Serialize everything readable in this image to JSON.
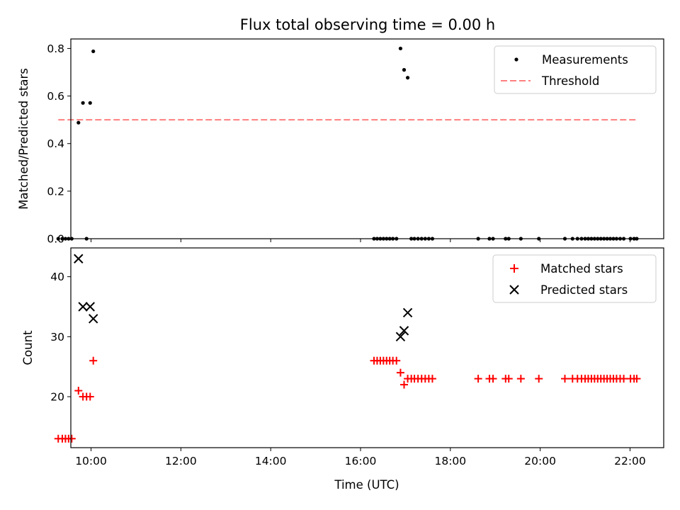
{
  "chart_data": [
    {
      "type": "scatter",
      "title": "Flux total observing time = 0.00 h",
      "xlabel": "",
      "ylabel": "Matched/Predicted stars",
      "xlim": [
        9.55,
        22.75
      ],
      "ylim": [
        0.0,
        0.84
      ],
      "yticks": [
        0.0,
        0.2,
        0.4,
        0.6,
        0.8
      ],
      "ytick_labels": [
        "0.0",
        "0.2",
        "0.4",
        "0.6",
        "0.8"
      ],
      "xticks": [
        10,
        12,
        14,
        16,
        18,
        20,
        22
      ],
      "legend_position": "top-right",
      "series": [
        {
          "name": "Measurements",
          "marker": "dot",
          "color": "#000000",
          "x": [
            9.27,
            9.36,
            9.43,
            9.5,
            9.57,
            9.72,
            9.82,
            9.9,
            9.98,
            10.05,
            16.3,
            16.37,
            16.44,
            16.51,
            16.58,
            16.65,
            16.72,
            16.8,
            16.89,
            16.97,
            17.05,
            17.13,
            17.2,
            17.28,
            17.36,
            17.44,
            17.52,
            17.6,
            18.62,
            18.87,
            18.95,
            19.23,
            19.3,
            19.57,
            19.97,
            20.55,
            20.72,
            20.83,
            20.92,
            21.0,
            21.07,
            21.14,
            21.21,
            21.28,
            21.35,
            21.42,
            21.49,
            21.56,
            21.63,
            21.7,
            21.78,
            21.86,
            22.01,
            22.09,
            22.15
          ],
          "y": [
            0.0,
            0.0,
            0.0,
            0.0,
            0.0,
            0.488,
            0.571,
            0.0,
            0.571,
            0.788,
            0.0,
            0.0,
            0.0,
            0.0,
            0.0,
            0.0,
            0.0,
            0.0,
            0.8,
            0.71,
            0.677,
            0.0,
            0.0,
            0.0,
            0.0,
            0.0,
            0.0,
            0.0,
            0.0,
            0.0,
            0.0,
            0.0,
            0.0,
            0.0,
            0.0,
            0.0,
            0.0,
            0.0,
            0.0,
            0.0,
            0.0,
            0.0,
            0.0,
            0.0,
            0.0,
            0.0,
            0.0,
            0.0,
            0.0,
            0.0,
            0.0,
            0.0,
            0.0,
            0.0,
            0.0
          ]
        },
        {
          "name": "Threshold",
          "marker": "dashed-line",
          "color": "#ff7f7f",
          "x": [
            9.27,
            22.15
          ],
          "y": [
            0.5,
            0.5
          ]
        }
      ]
    },
    {
      "type": "scatter",
      "title": "",
      "xlabel": "Time (UTC)",
      "ylabel": "Count",
      "xlim": [
        9.55,
        22.75
      ],
      "ylim": [
        11.5,
        44.8
      ],
      "yticks": [
        20,
        30,
        40
      ],
      "ytick_labels": [
        "20",
        "30",
        "40"
      ],
      "xticks": [
        10,
        12,
        14,
        16,
        18,
        20,
        22
      ],
      "xtick_labels": [
        "10:00",
        "12:00",
        "14:00",
        "16:00",
        "18:00",
        "20:00",
        "22:00"
      ],
      "legend_position": "top-right",
      "series": [
        {
          "name": "Matched stars",
          "marker": "plus",
          "color": "#ff0000",
          "x": [
            9.27,
            9.36,
            9.43,
            9.5,
            9.57,
            9.72,
            9.82,
            9.9,
            9.98,
            10.05,
            16.3,
            16.37,
            16.44,
            16.51,
            16.58,
            16.65,
            16.72,
            16.8,
            16.89,
            16.97,
            17.05,
            17.13,
            17.2,
            17.28,
            17.36,
            17.44,
            17.52,
            17.6,
            18.62,
            18.87,
            18.95,
            19.23,
            19.3,
            19.57,
            19.97,
            20.55,
            20.72,
            20.83,
            20.92,
            21.0,
            21.07,
            21.14,
            21.21,
            21.28,
            21.35,
            21.42,
            21.49,
            21.56,
            21.63,
            21.7,
            21.78,
            21.86,
            22.01,
            22.09,
            22.15
          ],
          "y": [
            13,
            13,
            13,
            13,
            13,
            21,
            20,
            20,
            20,
            26,
            26,
            26,
            26,
            26,
            26,
            26,
            26,
            26,
            24,
            22,
            23,
            23,
            23,
            23,
            23,
            23,
            23,
            23,
            23,
            23,
            23,
            23,
            23,
            23,
            23,
            23,
            23,
            23,
            23,
            23,
            23,
            23,
            23,
            23,
            23,
            23,
            23,
            23,
            23,
            23,
            23,
            23,
            23,
            23,
            23
          ]
        },
        {
          "name": "Predicted stars",
          "marker": "x",
          "color": "#000000",
          "x": [
            9.72,
            9.82,
            9.98,
            10.05,
            16.89,
            16.97,
            17.05
          ],
          "y": [
            43,
            35,
            35,
            33,
            30,
            31,
            34
          ]
        }
      ]
    }
  ]
}
